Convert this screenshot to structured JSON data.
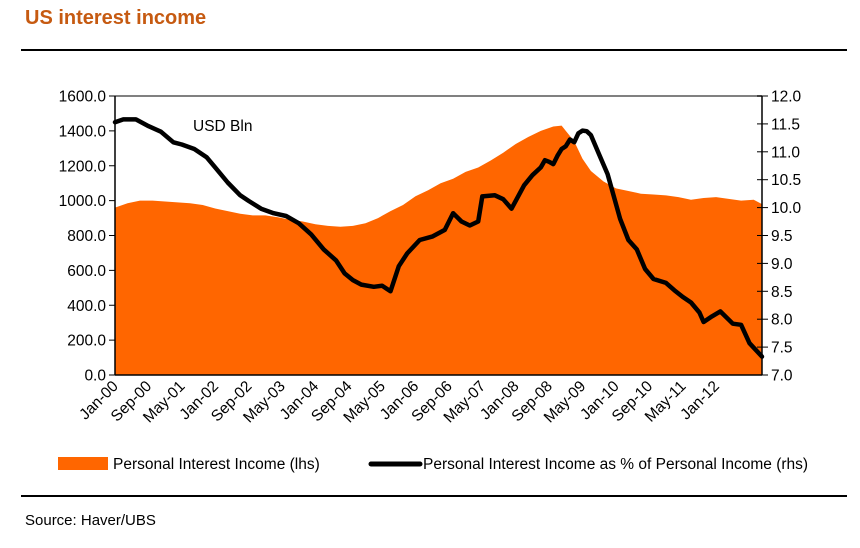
{
  "header": {
    "title": "US interest income"
  },
  "footer": {
    "source": "Source: Haver/UBS"
  },
  "colors": {
    "area": "#ff6600",
    "line": "#000000",
    "title": "#c65a11",
    "frame": "#808080"
  },
  "chart_data": {
    "type": "area+line",
    "title": "US interest income",
    "annotation": "USD Bln",
    "x_unit": "months since Jan-00",
    "x_range": [
      0,
      155
    ],
    "categories": [
      "Jan-00",
      "Sep-00",
      "May-01",
      "Jan-02",
      "Sep-02",
      "May-03",
      "Jan-04",
      "Sep-04",
      "May-05",
      "Jan-06",
      "Sep-06",
      "May-07",
      "Jan-08",
      "Sep-08",
      "May-09",
      "Jan-10",
      "Sep-10",
      "May-11",
      "Jan-12"
    ],
    "category_step_months": 8,
    "y_left": {
      "label": "USD Bln",
      "range": [
        0,
        1600
      ],
      "ticks": [
        "0.0",
        "200.0",
        "400.0",
        "600.0",
        "800.0",
        "1000.0",
        "1200.0",
        "1400.0",
        "1600.0"
      ]
    },
    "y_right": {
      "label": "%",
      "range": [
        7.0,
        12.0
      ],
      "ticks": [
        "7.0",
        "7.5",
        "8.0",
        "8.5",
        "9.0",
        "9.5",
        "10.0",
        "10.5",
        "11.0",
        "11.5",
        "12.0"
      ]
    },
    "grid": false,
    "legend_position": "bottom",
    "series": [
      {
        "name": "Personal Interest Income (lhs)",
        "type": "area",
        "axis": "left",
        "x": [
          0,
          3,
          6,
          9,
          12,
          15,
          18,
          21,
          24,
          27,
          30,
          33,
          36,
          39,
          42,
          45,
          48,
          51,
          54,
          57,
          60,
          63,
          66,
          69,
          72,
          75,
          78,
          81,
          84,
          87,
          90,
          93,
          96,
          99,
          102,
          105,
          107,
          108,
          110,
          112,
          114,
          117,
          120,
          123,
          126,
          129,
          132,
          135,
          138,
          141,
          144,
          147,
          150,
          153,
          155
        ],
        "values": [
          960,
          985,
          1000,
          1000,
          995,
          990,
          985,
          975,
          955,
          940,
          925,
          915,
          915,
          905,
          890,
          880,
          865,
          855,
          850,
          855,
          870,
          900,
          940,
          975,
          1025,
          1060,
          1100,
          1125,
          1165,
          1190,
          1230,
          1275,
          1325,
          1365,
          1400,
          1425,
          1430,
          1400,
          1340,
          1240,
          1170,
          1110,
          1070,
          1055,
          1040,
          1035,
          1030,
          1020,
          1005,
          1015,
          1020,
          1010,
          1000,
          1005,
          980
        ]
      },
      {
        "name": "Personal Interest Income as % of Personal Income (rhs)",
        "type": "line",
        "axis": "right",
        "x": [
          0,
          2,
          5,
          8,
          11,
          14,
          16,
          19,
          22,
          24,
          27,
          30,
          32,
          35,
          38,
          41,
          44,
          47,
          50,
          53,
          55,
          57,
          59,
          62,
          64,
          65,
          66,
          68,
          70,
          73,
          76,
          79,
          81,
          83,
          85,
          87,
          88,
          91,
          93,
          95,
          98,
          100,
          102,
          103,
          104,
          105,
          106,
          107,
          108,
          109,
          110,
          111,
          112,
          113,
          114,
          116,
          118,
          121,
          123,
          125,
          127,
          129,
          132,
          134,
          136,
          138,
          140,
          141,
          143,
          145,
          148,
          150,
          152,
          155
        ],
        "values": [
          11.53,
          11.58,
          11.58,
          11.46,
          11.36,
          11.17,
          11.13,
          11.05,
          10.9,
          10.72,
          10.45,
          10.22,
          10.12,
          9.98,
          9.9,
          9.85,
          9.72,
          9.52,
          9.25,
          9.05,
          8.82,
          8.7,
          8.62,
          8.58,
          8.6,
          8.55,
          8.5,
          8.95,
          9.18,
          9.42,
          9.48,
          9.6,
          9.9,
          9.75,
          9.68,
          9.75,
          10.2,
          10.22,
          10.15,
          9.98,
          10.4,
          10.58,
          10.72,
          10.85,
          10.82,
          10.78,
          10.93,
          11.05,
          11.1,
          11.22,
          11.17,
          11.33,
          11.38,
          11.37,
          11.3,
          10.95,
          10.6,
          9.8,
          9.42,
          9.25,
          8.9,
          8.72,
          8.65,
          8.52,
          8.4,
          8.3,
          8.12,
          7.95,
          8.05,
          8.14,
          7.92,
          7.9,
          7.57,
          7.33
        ]
      }
    ]
  },
  "legend": {
    "area_label": "Personal Interest Income (lhs)",
    "line_label": "Personal Interest Income as % of Personal Income (rhs)"
  }
}
